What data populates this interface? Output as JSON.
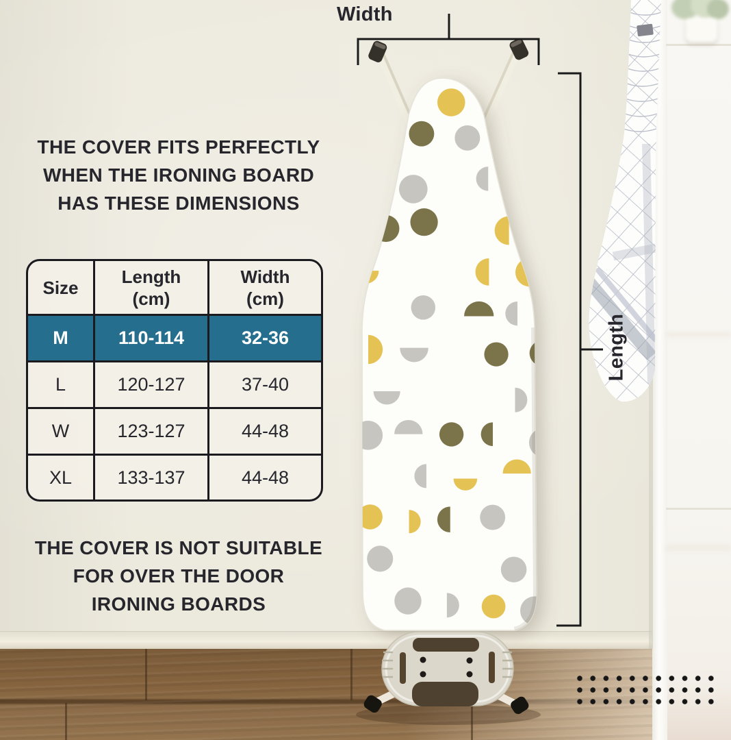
{
  "annotations": {
    "width_label": "Width",
    "length_label": "Length"
  },
  "heading": {
    "lines": [
      "THE COVER FITS PERFECTLY",
      "WHEN THE IRONING BOARD",
      "HAS THESE DIMENSIONS"
    ]
  },
  "note": {
    "lines": [
      "THE COVER IS NOT SUITABLE",
      "FOR OVER THE DOOR",
      "IRONING BOARDS"
    ]
  },
  "size_table": {
    "columns": [
      {
        "label": "Size",
        "sub": ""
      },
      {
        "label": "Length",
        "sub": "(cm)"
      },
      {
        "label": "Width",
        "sub": "(cm)"
      }
    ],
    "rows": [
      {
        "size": "M",
        "length": "110-114",
        "width": "32-36"
      },
      {
        "size": "L",
        "length": "120-127",
        "width": "37-40"
      },
      {
        "size": "W",
        "length": "123-127",
        "width": "44-48"
      },
      {
        "size": "XL",
        "length": "133-137",
        "width": "44-48"
      }
    ],
    "highlighted_row": "M",
    "highlight_color": "#266e8e"
  },
  "colors": {
    "text": "#26262c",
    "dimension_line": "#1b1b1b",
    "pattern_yellow": "#e5c254",
    "pattern_olive": "#7b744a",
    "pattern_gray": "#c7c5bf",
    "cover_white": "#fdfdfa"
  }
}
